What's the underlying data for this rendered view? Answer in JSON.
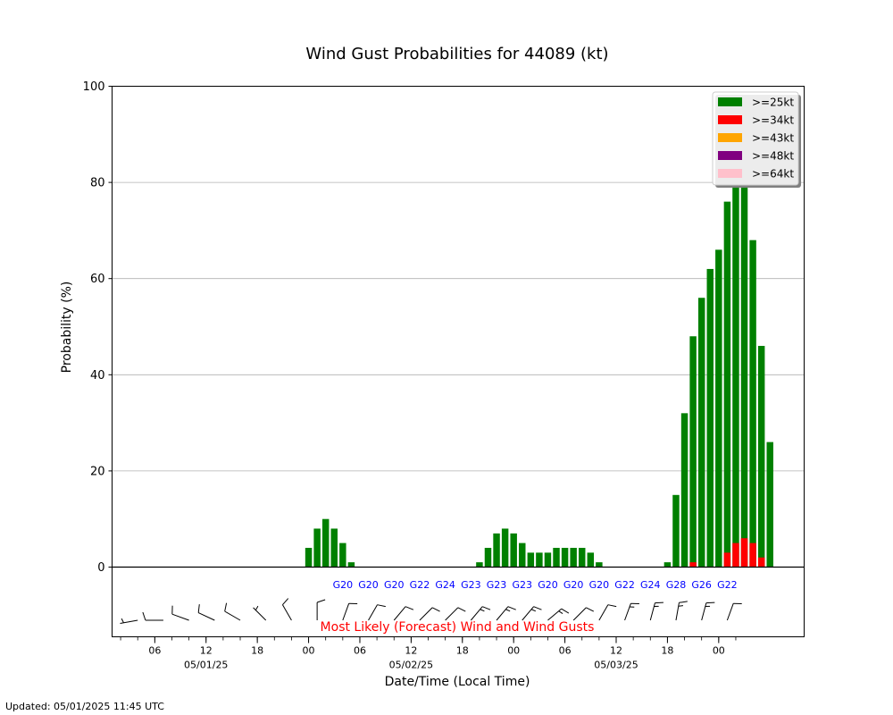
{
  "chart_data": {
    "type": "bar",
    "title": "Wind Gust Probabilities for 44089 (kt)",
    "xlabel": "Date/Time (Local Time)",
    "ylabel": "Probability (%)",
    "ylim": [
      0,
      100
    ],
    "yticks": [
      0,
      20,
      40,
      60,
      80,
      100
    ],
    "grid": "horizontal",
    "legend_position": "top-right",
    "stacked": true,
    "x_start": "05/01/25 01:00",
    "x_step_hours": 1,
    "x_start_index": 0,
    "x_end_index": 81,
    "xticks": [
      {
        "index": 5,
        "label": "06"
      },
      {
        "index": 11,
        "label": "12",
        "date": "05/01/25"
      },
      {
        "index": 17,
        "label": "18"
      },
      {
        "index": 23,
        "label": "00"
      },
      {
        "index": 29,
        "label": "06"
      },
      {
        "index": 35,
        "label": "12",
        "date": "05/02/25"
      },
      {
        "index": 41,
        "label": "18"
      },
      {
        "index": 47,
        "label": "00"
      },
      {
        "index": 53,
        "label": "06"
      },
      {
        "index": 59,
        "label": "12",
        "date": "05/03/25"
      },
      {
        "index": 65,
        "label": "18"
      },
      {
        "index": 71,
        "label": "00"
      }
    ],
    "series": [
      {
        "name": ">=25kt",
        "color": "#008000",
        "start_index": 23,
        "values": [
          4,
          8,
          10,
          8,
          5,
          1,
          0,
          0,
          0,
          0,
          0,
          0,
          0,
          0,
          0,
          0,
          0,
          0,
          0,
          0,
          1,
          4,
          7,
          8,
          7,
          5,
          3,
          3,
          3,
          4,
          4,
          4,
          4,
          3,
          1,
          0,
          0,
          0,
          0,
          0,
          0,
          0,
          1,
          15,
          32,
          48,
          56,
          62,
          66,
          76,
          80,
          80,
          68,
          46,
          26
        ]
      },
      {
        "name": ">=34kt",
        "color": "#ff0000",
        "start_index": 23,
        "values": [
          0,
          0,
          0,
          0,
          0,
          0,
          0,
          0,
          0,
          0,
          0,
          0,
          0,
          0,
          0,
          0,
          0,
          0,
          0,
          0,
          0,
          0,
          0,
          0,
          0,
          0,
          0,
          0,
          0,
          0,
          0,
          0,
          0,
          0,
          0,
          0,
          0,
          0,
          0,
          0,
          0,
          0,
          0,
          0,
          0,
          1,
          0,
          0,
          0,
          3,
          5,
          6,
          5,
          2,
          0
        ]
      },
      {
        "name": ">=43kt",
        "color": "#ffa500",
        "start_index": 23,
        "values": []
      },
      {
        "name": ">=48kt",
        "color": "#800080",
        "start_index": 23,
        "values": []
      },
      {
        "name": ">=64kt",
        "color": "#ffc0cb",
        "start_index": 23,
        "values": []
      }
    ],
    "forecast_label": "Most Likely (Forecast) Wind and Wind Gusts",
    "gust_labels": [
      {
        "index": 27,
        "label": "G20"
      },
      {
        "index": 30,
        "label": "G20"
      },
      {
        "index": 33,
        "label": "G20"
      },
      {
        "index": 36,
        "label": "G22"
      },
      {
        "index": 39,
        "label": "G24"
      },
      {
        "index": 42,
        "label": "G23"
      },
      {
        "index": 45,
        "label": "G23"
      },
      {
        "index": 48,
        "label": "G23"
      },
      {
        "index": 51,
        "label": "G20"
      },
      {
        "index": 54,
        "label": "G20"
      },
      {
        "index": 57,
        "label": "G20"
      },
      {
        "index": 60,
        "label": "G22"
      },
      {
        "index": 63,
        "label": "G24"
      },
      {
        "index": 66,
        "label": "G28"
      },
      {
        "index": 69,
        "label": "G26"
      },
      {
        "index": 72,
        "label": "G22"
      }
    ],
    "wind_barbs": [
      {
        "index": 3,
        "dir": 260,
        "speed": 5
      },
      {
        "index": 6,
        "dir": 270,
        "speed": 10
      },
      {
        "index": 9,
        "dir": 290,
        "speed": 10
      },
      {
        "index": 12,
        "dir": 295,
        "speed": 10
      },
      {
        "index": 15,
        "dir": 300,
        "speed": 10
      },
      {
        "index": 18,
        "dir": 315,
        "speed": 5
      },
      {
        "index": 21,
        "dir": 330,
        "speed": 10
      },
      {
        "index": 24,
        "dir": 360,
        "speed": 10
      },
      {
        "index": 27,
        "dir": 20,
        "speed": 10
      },
      {
        "index": 30,
        "dir": 30,
        "speed": 10
      },
      {
        "index": 33,
        "dir": 40,
        "speed": 10
      },
      {
        "index": 36,
        "dir": 45,
        "speed": 10
      },
      {
        "index": 39,
        "dir": 45,
        "speed": 10
      },
      {
        "index": 42,
        "dir": 40,
        "speed": 15
      },
      {
        "index": 45,
        "dir": 40,
        "speed": 15
      },
      {
        "index": 48,
        "dir": 40,
        "speed": 15
      },
      {
        "index": 51,
        "dir": 50,
        "speed": 15
      },
      {
        "index": 54,
        "dir": 45,
        "speed": 10
      },
      {
        "index": 57,
        "dir": 30,
        "speed": 10
      },
      {
        "index": 60,
        "dir": 20,
        "speed": 15
      },
      {
        "index": 63,
        "dir": 15,
        "speed": 15
      },
      {
        "index": 66,
        "dir": 10,
        "speed": 15
      },
      {
        "index": 69,
        "dir": 15,
        "speed": 15
      },
      {
        "index": 72,
        "dir": 20,
        "speed": 10
      }
    ]
  },
  "footer": {
    "updated": "Updated: 05/01/2025 11:45 UTC"
  }
}
